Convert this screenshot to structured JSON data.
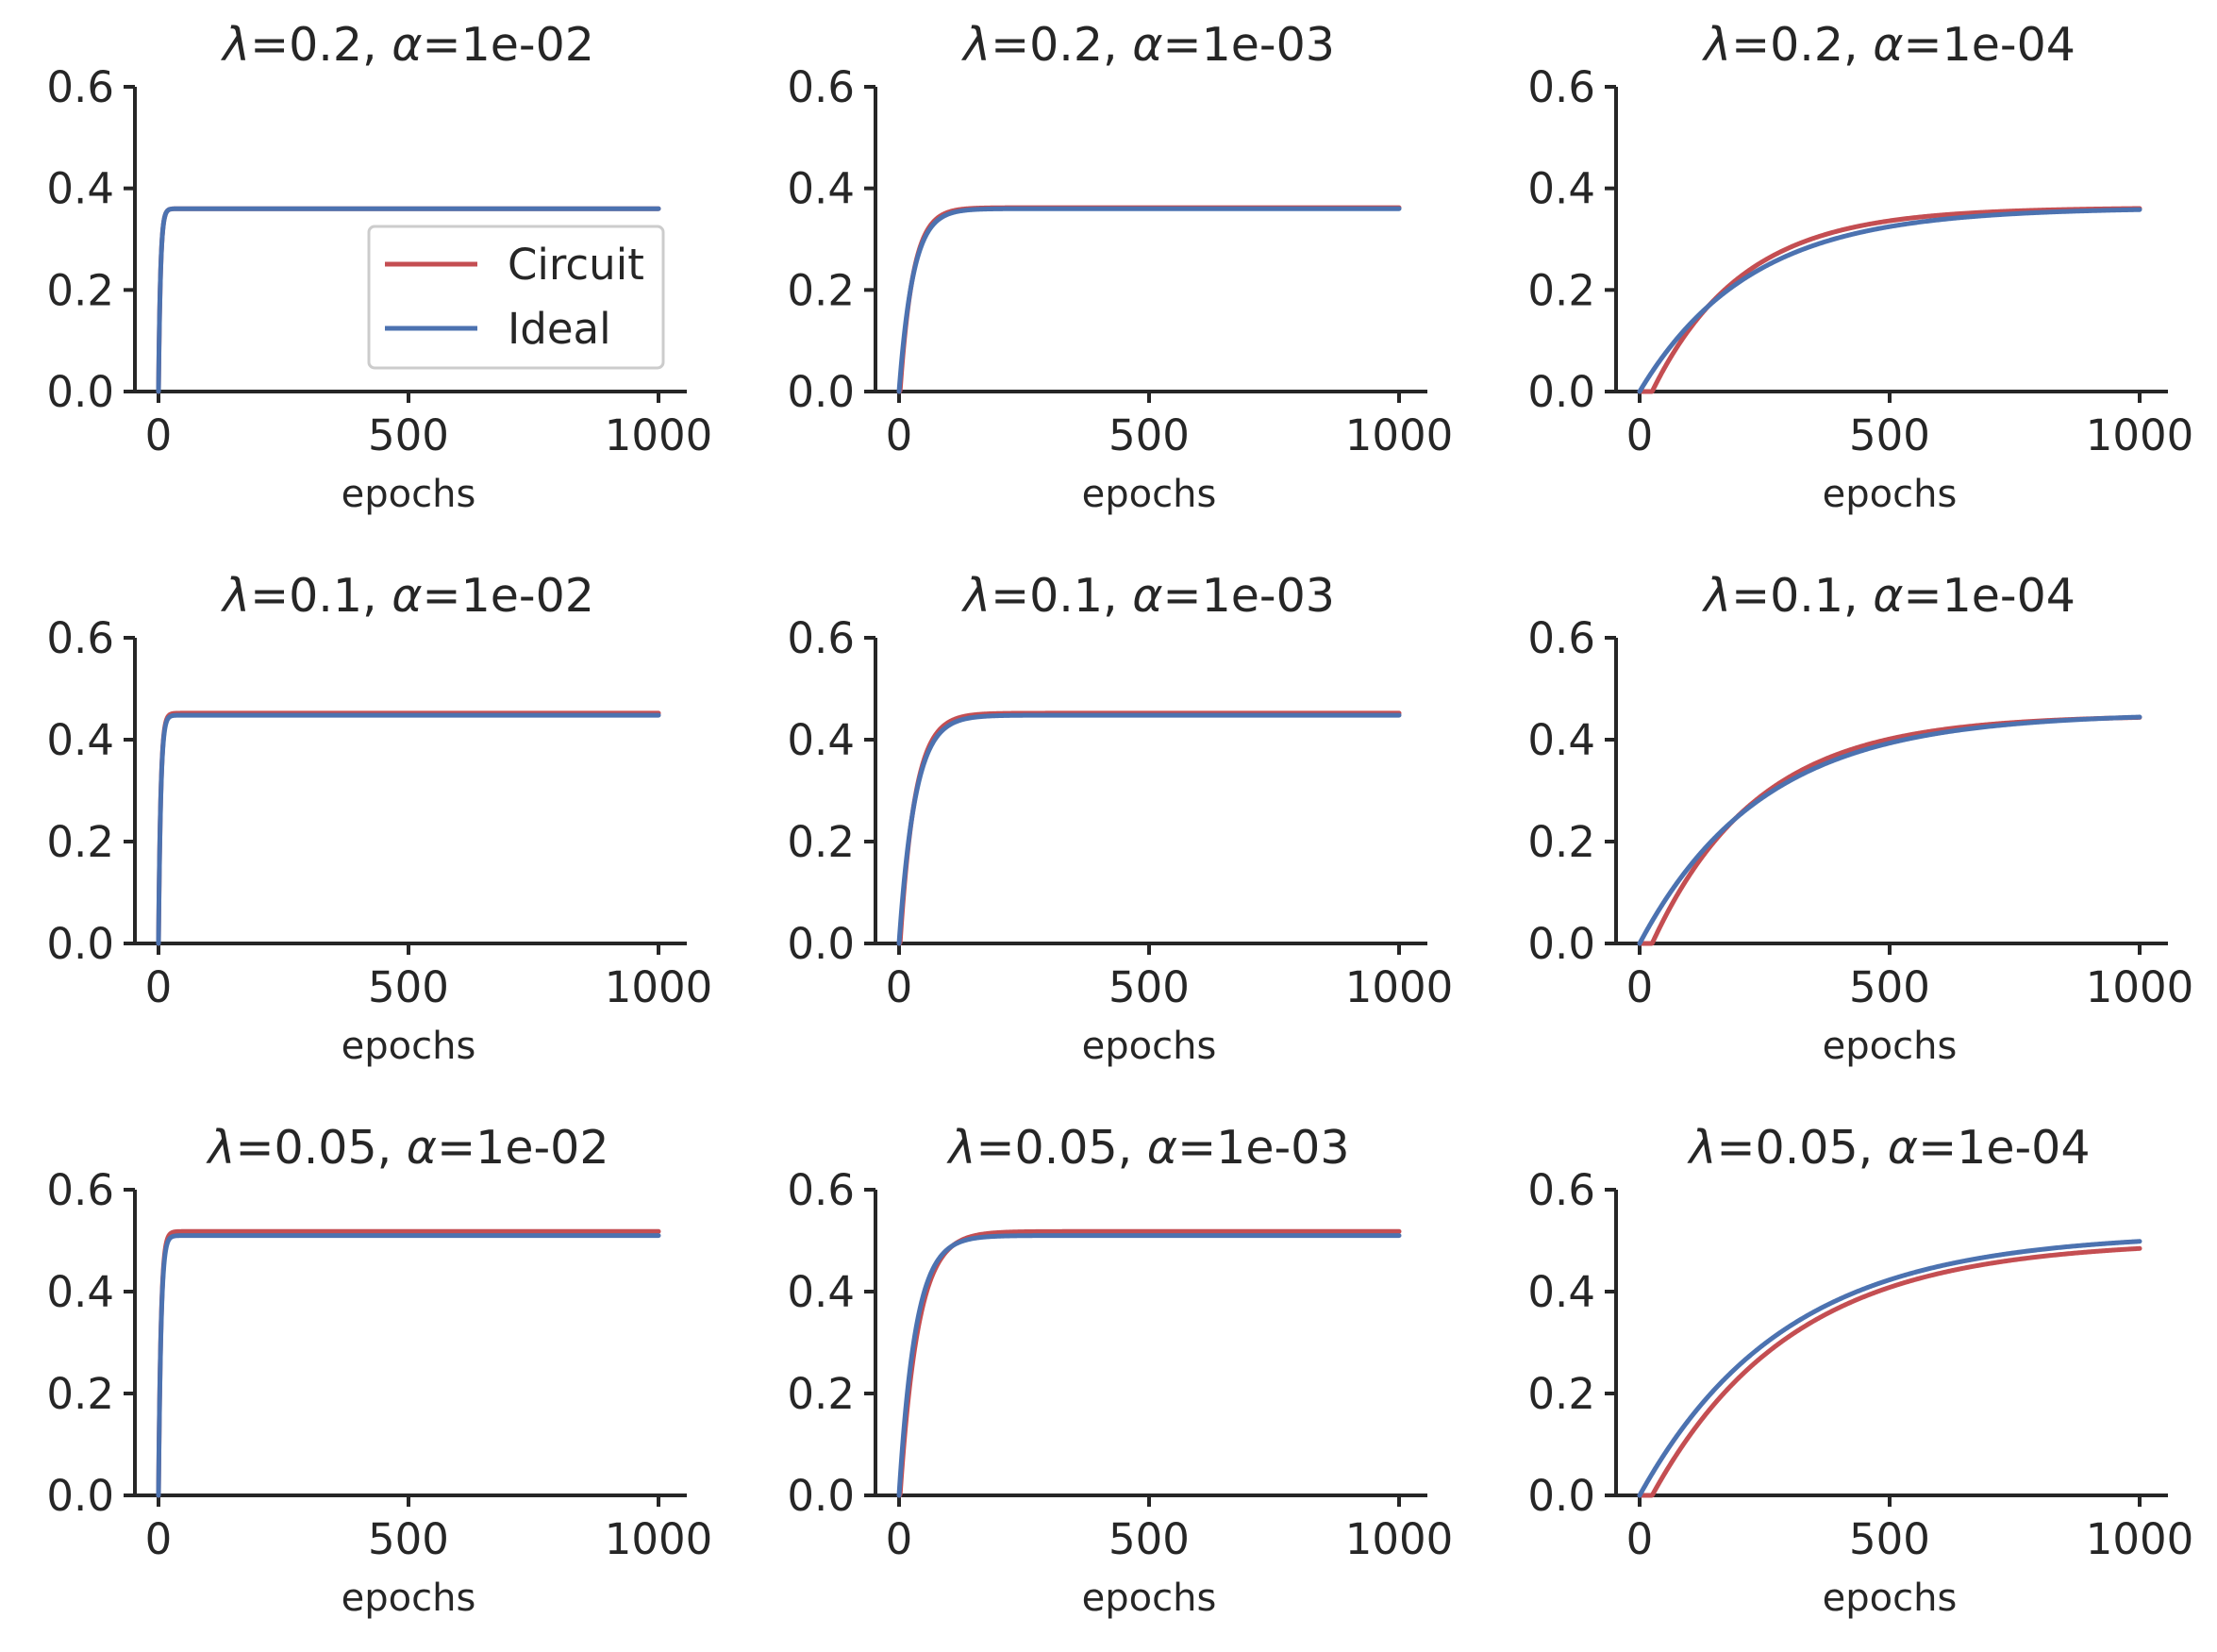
{
  "colors": {
    "circuit": "#c44e52",
    "ideal": "#4c72b0",
    "axis": "#262626"
  },
  "legend": {
    "entries": [
      "Circuit",
      "Ideal"
    ],
    "placement": "lower-right of first subplot"
  },
  "chart_data": [
    {
      "type": "line",
      "title": "λ=0.2, α=1e-02",
      "lambda_label": "0.2",
      "alpha_label": "1e-02",
      "xlabel": "epochs",
      "ylabel": "",
      "xlim": [
        -50,
        1050
      ],
      "ylim": [
        0,
        0.6
      ],
      "xticks": [
        "0",
        "500",
        "1000"
      ],
      "yticks": [
        "0.0",
        "0.2",
        "0.4",
        "0.6"
      ],
      "series": [
        {
          "name": "Circuit",
          "x": [
            0,
            1000
          ],
          "asymptote": 0.36,
          "tau": 4.0,
          "delay": 0
        },
        {
          "name": "Ideal",
          "x": [
            0,
            1000
          ],
          "asymptote": 0.36,
          "tau": 4.0,
          "delay": 0
        }
      ]
    },
    {
      "type": "line",
      "title": "λ=0.2, α=1e-03",
      "lambda_label": "0.2",
      "alpha_label": "1e-03",
      "xlabel": "epochs",
      "ylabel": "",
      "xlim": [
        -50,
        1050
      ],
      "ylim": [
        0,
        0.6
      ],
      "xticks": [
        "0",
        "500",
        "1000"
      ],
      "yticks": [
        "0.0",
        "0.2",
        "0.4",
        "0.6"
      ],
      "series": [
        {
          "name": "Circuit",
          "x": [
            0,
            1000
          ],
          "asymptote": 0.362,
          "tau": 26,
          "delay": 2
        },
        {
          "name": "Ideal",
          "x": [
            0,
            1000
          ],
          "asymptote": 0.36,
          "tau": 28,
          "delay": 0
        }
      ]
    },
    {
      "type": "line",
      "title": "λ=0.2, α=1e-04",
      "lambda_label": "0.2",
      "alpha_label": "1e-04",
      "xlabel": "epochs",
      "ylabel": "",
      "xlim": [
        -50,
        1050
      ],
      "ylim": [
        0,
        0.6
      ],
      "xticks": [
        "0",
        "500",
        "1000"
      ],
      "yticks": [
        "0.0",
        "0.2",
        "0.4",
        "0.6"
      ],
      "series": [
        {
          "name": "Circuit",
          "x": [
            0,
            1000
          ],
          "asymptote": 0.362,
          "tau": 180,
          "delay": 25
        },
        {
          "name": "Ideal",
          "x": [
            0,
            1000
          ],
          "asymptote": 0.362,
          "tau": 220,
          "delay": 0
        }
      ]
    },
    {
      "type": "line",
      "title": "λ=0.1, α=1e-02",
      "lambda_label": "0.1",
      "alpha_label": "1e-02",
      "xlabel": "epochs",
      "ylabel": "",
      "xlim": [
        -50,
        1050
      ],
      "ylim": [
        0,
        0.6
      ],
      "xticks": [
        "0",
        "500",
        "1000"
      ],
      "yticks": [
        "0.0",
        "0.2",
        "0.4",
        "0.6"
      ],
      "series": [
        {
          "name": "Circuit",
          "x": [
            0,
            1000
          ],
          "asymptote": 0.452,
          "tau": 4.5,
          "delay": 0
        },
        {
          "name": "Ideal",
          "x": [
            0,
            1000
          ],
          "asymptote": 0.448,
          "tau": 4.5,
          "delay": 0
        }
      ]
    },
    {
      "type": "line",
      "title": "λ=0.1, α=1e-03",
      "lambda_label": "0.1",
      "alpha_label": "1e-03",
      "xlabel": "epochs",
      "ylabel": "",
      "xlim": [
        -50,
        1050
      ],
      "ylim": [
        0,
        0.6
      ],
      "xticks": [
        "0",
        "500",
        "1000"
      ],
      "yticks": [
        "0.0",
        "0.2",
        "0.4",
        "0.6"
      ],
      "series": [
        {
          "name": "Circuit",
          "x": [
            0,
            1000
          ],
          "asymptote": 0.452,
          "tau": 30,
          "delay": 2
        },
        {
          "name": "Ideal",
          "x": [
            0,
            1000
          ],
          "asymptote": 0.448,
          "tau": 32,
          "delay": 0
        }
      ]
    },
    {
      "type": "line",
      "title": "λ=0.1, α=1e-04",
      "lambda_label": "0.1",
      "alpha_label": "1e-04",
      "xlabel": "epochs",
      "ylabel": "",
      "xlim": [
        -50,
        1050
      ],
      "ylim": [
        0,
        0.6
      ],
      "xticks": [
        "0",
        "500",
        "1000"
      ],
      "yticks": [
        "0.0",
        "0.2",
        "0.4",
        "0.6"
      ],
      "series": [
        {
          "name": "Circuit",
          "x": [
            0,
            1000
          ],
          "asymptote": 0.448,
          "tau": 210,
          "delay": 25
        },
        {
          "name": "Ideal",
          "x": [
            0,
            1000
          ],
          "asymptote": 0.452,
          "tau": 245,
          "delay": 0
        }
      ]
    },
    {
      "type": "line",
      "title": "λ=0.05, α=1e-02",
      "lambda_label": "0.05",
      "alpha_label": "1e-02",
      "xlabel": "epochs",
      "ylabel": "",
      "xlim": [
        -50,
        1050
      ],
      "ylim": [
        0,
        0.6
      ],
      "xticks": [
        "0",
        "500",
        "1000"
      ],
      "yticks": [
        "0.0",
        "0.2",
        "0.4",
        "0.6"
      ],
      "series": [
        {
          "name": "Circuit",
          "x": [
            0,
            1000
          ],
          "asymptote": 0.518,
          "tau": 5,
          "delay": 0
        },
        {
          "name": "Ideal",
          "x": [
            0,
            1000
          ],
          "asymptote": 0.51,
          "tau": 5,
          "delay": 0
        }
      ]
    },
    {
      "type": "line",
      "title": "λ=0.05, α=1e-03",
      "lambda_label": "0.05",
      "alpha_label": "1e-03",
      "xlabel": "epochs",
      "ylabel": "",
      "xlim": [
        -50,
        1050
      ],
      "ylim": [
        0,
        0.6
      ],
      "xticks": [
        "0",
        "500",
        "1000"
      ],
      "yticks": [
        "0.0",
        "0.2",
        "0.4",
        "0.6"
      ],
      "series": [
        {
          "name": "Circuit",
          "x": [
            0,
            1000
          ],
          "asymptote": 0.518,
          "tau": 36,
          "delay": 2
        },
        {
          "name": "Ideal",
          "x": [
            0,
            1000
          ],
          "asymptote": 0.51,
          "tau": 33,
          "delay": 0
        }
      ]
    },
    {
      "type": "line",
      "title": "λ=0.05, α=1e-04",
      "lambda_label": "0.05",
      "alpha_label": "1e-04",
      "xlabel": "epochs",
      "ylabel": "",
      "xlim": [
        -50,
        1050
      ],
      "ylim": [
        0,
        0.6
      ],
      "xticks": [
        "0",
        "500",
        "1000"
      ],
      "yticks": [
        "0.0",
        "0.2",
        "0.4",
        "0.6"
      ],
      "series": [
        {
          "name": "Circuit",
          "x": [
            0,
            1000
          ],
          "asymptote": 0.5,
          "tau": 280,
          "delay": 25
        },
        {
          "name": "Ideal",
          "x": [
            0,
            1000
          ],
          "asymptote": 0.515,
          "tau": 290,
          "delay": 0
        }
      ]
    }
  ]
}
